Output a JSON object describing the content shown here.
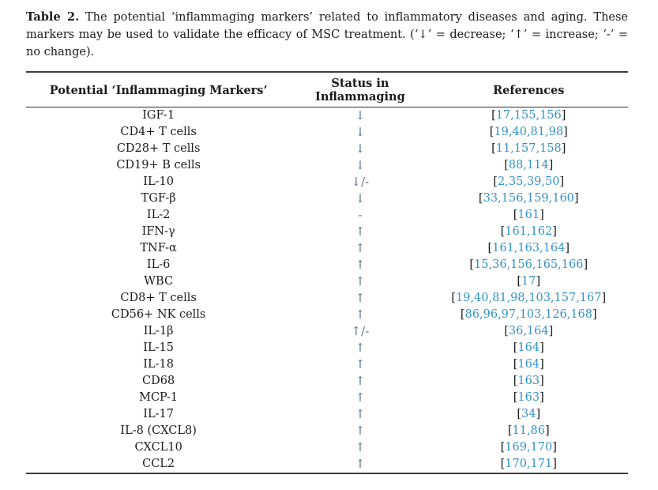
{
  "caption": {
    "label": "Table 2.",
    "text": "The potential ‘inflammaging markers’ related to inflammatory diseases and aging. These markers may be used to validate the efficacy of MSC treatment. (‘↓’ = decrease; ‘↑’ = increase; ‘-’ = no change)."
  },
  "table": {
    "columns": [
      "Potential ‘Inflammaging Markers’",
      "Status in Inflammaging",
      "References"
    ],
    "refs_bracket_open": "[",
    "refs_bracket_close": "]",
    "colors": {
      "text": "#1b1b1b",
      "rule": "#3d3d3d",
      "reference_link": "#3592c8",
      "status_symbol": "#566f8c"
    },
    "rows": [
      {
        "marker": "IGF-1",
        "status": "↓",
        "refs": "17,155,156"
      },
      {
        "marker": "CD4+ T cells",
        "status": "↓",
        "refs": "19,40,81,98"
      },
      {
        "marker": "CD28+ T cells",
        "status": "↓",
        "refs": "11,157,158"
      },
      {
        "marker": "CD19+ B cells",
        "status": "↓",
        "refs": "88,114"
      },
      {
        "marker": "IL-10",
        "status": "↓/-",
        "refs": "2,35,39,50"
      },
      {
        "marker": "TGF-β",
        "status": "↓",
        "refs": "33,156,159,160"
      },
      {
        "marker": "IL-2",
        "status": "-",
        "refs": "161"
      },
      {
        "marker": "IFN-γ",
        "status": "↑",
        "refs": "161,162"
      },
      {
        "marker": "TNF-α",
        "status": "↑",
        "refs": "161,163,164"
      },
      {
        "marker": "IL-6",
        "status": "↑",
        "refs": "15,36,156,165,166"
      },
      {
        "marker": "WBC",
        "status": "↑",
        "refs": "17"
      },
      {
        "marker": "CD8+ T cells",
        "status": "↑",
        "refs": "19,40,81,98,103,157,167"
      },
      {
        "marker": "CD56+ NK cells",
        "status": "↑",
        "refs": "86,96,97,103,126,168"
      },
      {
        "marker": "IL-1β",
        "status": "↑/-",
        "refs": "36,164"
      },
      {
        "marker": "IL-15",
        "status": "↑",
        "refs": "164"
      },
      {
        "marker": "IL-18",
        "status": "↑",
        "refs": "164"
      },
      {
        "marker": "CD68",
        "status": "↑",
        "refs": "163"
      },
      {
        "marker": "MCP-1",
        "status": "↑",
        "refs": "163"
      },
      {
        "marker": "IL-17",
        "status": "↑",
        "refs": "34"
      },
      {
        "marker": "IL-8 (CXCL8)",
        "status": "↑",
        "refs": "11,86"
      },
      {
        "marker": "CXCL10",
        "status": "↑",
        "refs": "169,170"
      },
      {
        "marker": "CCL2",
        "status": "↑",
        "refs": "170,171"
      }
    ]
  }
}
